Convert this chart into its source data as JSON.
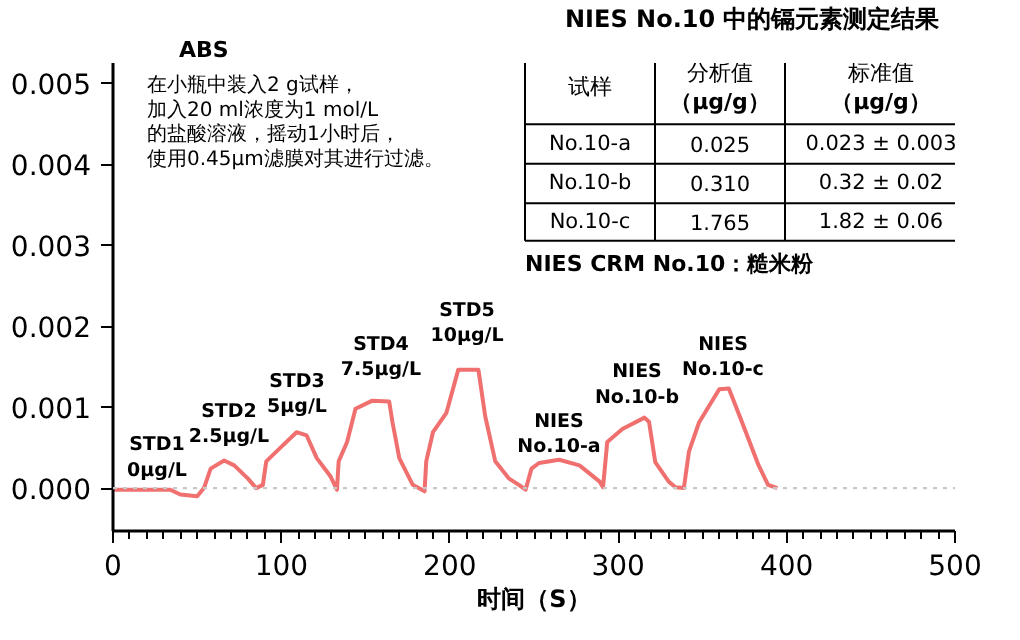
{
  "chart_data": {
    "type": "line",
    "xlabel": "时间（S）",
    "ylabel": "ABS",
    "xlim": [
      0,
      500
    ],
    "ylim": [
      -0.00053,
      0.00525
    ],
    "xticks": [
      0,
      100,
      200,
      300,
      400,
      500
    ],
    "yticks": [
      {
        "value": 0,
        "label": "0.000"
      },
      {
        "value": 0.001,
        "label": "0.001"
      },
      {
        "value": 0.002,
        "label": "0.002"
      },
      {
        "value": 0.003,
        "label": "0.003"
      },
      {
        "value": 0.004,
        "label": "0.004"
      },
      {
        "value": 0.005,
        "label": "0.005"
      }
    ],
    "grid": false,
    "ref_lines": [
      {
        "axis": "y",
        "value": 0,
        "color": "#c8c8c8",
        "line_style": "dotted"
      }
    ],
    "series": [
      {
        "color": "#f07070",
        "x": [
          0,
          34,
          40,
          50,
          54,
          58,
          66,
          72,
          80,
          85,
          89,
          91,
          99,
          109,
          115,
          121,
          129,
          133,
          134,
          139,
          144,
          154,
          164,
          166,
          170,
          178,
          185,
          186,
          190,
          198,
          205,
          217,
          221,
          227,
          235,
          241,
          245,
          248.5,
          253,
          265,
          277,
          289,
          291,
          293.5,
          302.5,
          315.6,
          318.3,
          322,
          330,
          334,
          339,
          342,
          348,
          360,
          365.7,
          373.6,
          383.4,
          389,
          394.5
        ],
        "values": [
          -2e-05,
          -2e-05,
          -8e-05,
          -0.0001,
          0,
          0.00024,
          0.00034,
          0.00028,
          0.00012,
          0,
          4e-05,
          0.00033,
          0.00049,
          0.00069,
          0.00065,
          0.00037,
          0.00015,
          -2e-05,
          0.00033,
          0.00057,
          0.00098,
          0.00108,
          0.00107,
          0.00081,
          0.00037,
          4e-05,
          -4e-05,
          0.00033,
          0.00069,
          0.00093,
          0.00146,
          0.00146,
          0.00089,
          0.00033,
          0.00012,
          4e-05,
          -2e-05,
          0.00024,
          0.00031,
          0.00035,
          0.00028,
          8e-05,
          1e-05,
          0.00057,
          0.00073,
          0.00087,
          0.00082,
          0.00032,
          8e-05,
          1e-05,
          0,
          0.00045,
          0.00081,
          0.00122,
          0.00123,
          0.00081,
          0.00028,
          4e-05,
          0
        ]
      }
    ],
    "annotations": [
      "在小瓶中装入2 g试样，",
      "加入20 ml浓度为1 mol/L",
      "的盐酸溶液，摇动1小时后，",
      "使用0.45μm滤膜对其进行过滤。",
      "NIES No.10 中的镉元素测定结果",
      "试样",
      "分析值",
      "（μg/g）",
      "标准值",
      "（μg/g）",
      "No.10-a",
      "0.025",
      "0.023 ± 0.003",
      "No.10-b",
      "0.310",
      "0.32 ± 0.02",
      "No.10-c",
      "1.765",
      "1.82 ± 0.06",
      "NIES CRM No.10：糙米粉",
      "STD1\n0μg/L",
      "STD2\n2.5μg/L",
      "STD3\n5μg/L",
      "STD4\n7.5μg/L",
      "STD5\n10μg/L",
      "NIES\nNo.10-a",
      "NIES\nNo.10-b",
      "NIES\nNo.10-c"
    ]
  }
}
